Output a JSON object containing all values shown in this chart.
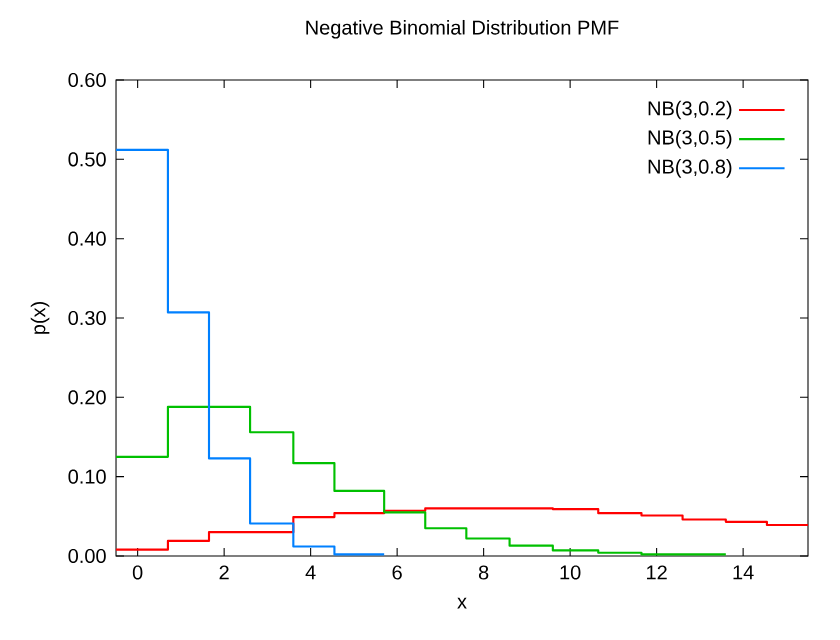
{
  "chart_data": {
    "type": "step",
    "title": "Negative Binomial Distribution PMF",
    "xlabel": "x",
    "ylabel": "p(x)",
    "xlim": [
      -0.5,
      15.5
    ],
    "xticks": [
      0,
      2,
      4,
      6,
      8,
      10,
      12,
      14
    ],
    "ylim": [
      0,
      0.6
    ],
    "yticks": [
      {
        "value": 0,
        "label": "0.00"
      },
      {
        "value": 0.1,
        "label": "0.10"
      },
      {
        "value": 0.2,
        "label": "0.20"
      },
      {
        "value": 0.3,
        "label": "0.30"
      },
      {
        "value": 0.4,
        "label": "0.40"
      },
      {
        "value": 0.5,
        "label": "0.50"
      },
      {
        "value": 0.6,
        "label": "0.60"
      }
    ],
    "legend": "top right",
    "grid": false,
    "series": [
      {
        "name": "NB(3,0.2)",
        "color": "#ff0000",
        "x": [
          -0.5,
          0.7,
          1.65,
          3.6,
          4.55,
          5.7,
          6.65,
          9.6,
          10.65,
          11.65,
          12.6,
          13.6,
          14.55,
          15.5
        ],
        "values": [
          0.008,
          0.019,
          0.03,
          0.049,
          0.054,
          0.057,
          0.06,
          0.059,
          0.054,
          0.051,
          0.046,
          0.043,
          0.039,
          0.039
        ]
      },
      {
        "name": "NB(3,0.5)",
        "color": "#00c000",
        "x": [
          -0.5,
          0.7,
          2.6,
          3.6,
          4.55,
          5.7,
          6.65,
          7.6,
          8.6,
          9.6,
          10.65,
          11.65,
          13.6
        ],
        "values": [
          0.125,
          0.188,
          0.156,
          0.117,
          0.082,
          0.055,
          0.035,
          0.022,
          0.013,
          0.007,
          0.004,
          0.002,
          0.002
        ]
      },
      {
        "name": "NB(3,0.8)",
        "color": "#0080ff",
        "x": [
          -0.5,
          0.7,
          1.65,
          2.6,
          3.6,
          4.55,
          5.7
        ],
        "values": [
          0.512,
          0.307,
          0.123,
          0.041,
          0.012,
          0.002,
          0.002
        ]
      }
    ]
  }
}
